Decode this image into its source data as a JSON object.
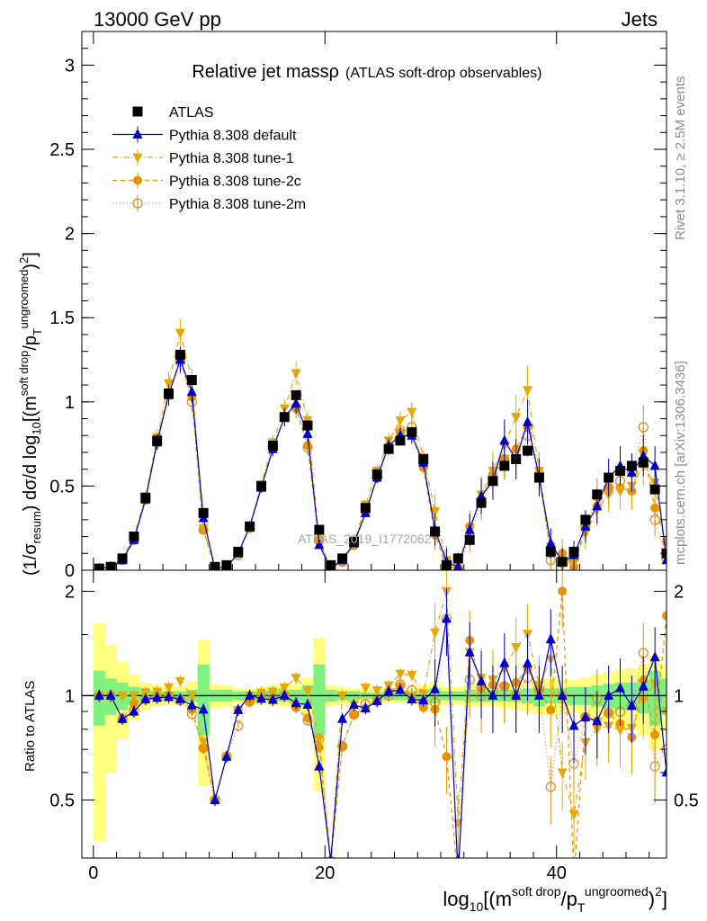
{
  "header": {
    "left": "13000 GeV pp",
    "right": "Jets"
  },
  "side_labels": {
    "rivet": "Rivet 3.1.10, ≥ 2.5M events",
    "mcplots": "mcplots.cern.ch [arXiv:1306.3436]"
  },
  "watermark": "ATLAS_2019_I1772062",
  "colors": {
    "atlas": "#000000",
    "default": "#0000cc",
    "tunes": "#e6a800",
    "tune2c": "#e69500",
    "tune2m": "#dd8a22",
    "band_inner": "#80f080",
    "band_outer": "#ffff80",
    "ref_line": "#000000"
  },
  "chart_data": {
    "type": "line",
    "title": "Relative jet massρ",
    "subtitle": "(ATLAS soft-drop observables)",
    "ylabel": "(1/σresum) dσ/d log10[(m^(soft drop)/pT^(ungroomed))²]",
    "ylabel_parts": {
      "a": "(1/σ",
      "b": "resum",
      "c": ") dσ/d log",
      "d": "10",
      "e": "[(m",
      "f": "soft drop",
      "g": "/p",
      "h": "T",
      "i": "ungroomed",
      "j": ")",
      "k": "2",
      "l": "]"
    },
    "xlabel_parts": {
      "a": "log",
      "b": "10",
      "c": "[(m",
      "d": "soft drop",
      "e": "/p",
      "f": "T",
      "g": "ungroomed",
      "h": ")",
      "i": "2",
      "j": "]"
    },
    "ratio_ylabel": "Ratio to ATLAS",
    "xlim": [
      -1,
      49.5
    ],
    "ylim": [
      0,
      3.2
    ],
    "ratio_ylim": [
      0.34,
      2.3
    ],
    "x_ticks": [
      "0",
      "20",
      "40"
    ],
    "y_ticks": [
      "0",
      "0.5",
      "1",
      "1.5",
      "2",
      "2.5",
      "3"
    ],
    "ratio_ticks": [
      "0.5",
      "1",
      "2"
    ],
    "legend_position": "top-left",
    "x": [
      0.5,
      1.5,
      2.5,
      3.5,
      4.5,
      5.5,
      6.5,
      7.5,
      8.5,
      9.5,
      10.5,
      11.5,
      12.5,
      13.5,
      14.5,
      15.5,
      16.5,
      17.5,
      18.5,
      19.5,
      20.5,
      21.5,
      22.5,
      23.5,
      24.5,
      25.5,
      26.5,
      27.5,
      28.5,
      29.5,
      30.5,
      31.5,
      32.5,
      33.5,
      34.5,
      35.5,
      36.5,
      37.5,
      38.5,
      39.5,
      40.5,
      41.5,
      42.5,
      43.5,
      44.5,
      45.5,
      46.5,
      47.5,
      48.5,
      49.5
    ],
    "band_inner": [
      1.18,
      1.12,
      1.09,
      1.06,
      1.04,
      1.03,
      1.03,
      1.03,
      1.04,
      1.23,
      1.04,
      1.04,
      1.03,
      1.03,
      1.03,
      1.04,
      1.04,
      1.04,
      1.07,
      1.23,
      1.04,
      1.03,
      1.03,
      1.02,
      1.02,
      1.03,
      1.03,
      1.03,
      1.04,
      1.05,
      1.03,
      1.03,
      1.04,
      1.04,
      1.04,
      1.04,
      1.04,
      1.05,
      1.07,
      1.05,
      1.05,
      1.06,
      1.06,
      1.07,
      1.08,
      1.09,
      1.09,
      1.11,
      1.18,
      1.12
    ],
    "band_outer": [
      1.62,
      1.4,
      1.25,
      1.15,
      1.09,
      1.07,
      1.06,
      1.06,
      1.1,
      1.45,
      1.08,
      1.07,
      1.05,
      1.05,
      1.06,
      1.07,
      1.07,
      1.08,
      1.13,
      1.47,
      1.07,
      1.06,
      1.05,
      1.05,
      1.04,
      1.05,
      1.05,
      1.05,
      1.07,
      1.1,
      1.06,
      1.06,
      1.07,
      1.07,
      1.07,
      1.08,
      1.09,
      1.1,
      1.12,
      1.12,
      1.11,
      1.11,
      1.13,
      1.15,
      1.17,
      1.19,
      1.2,
      1.23,
      1.3,
      1.22
    ],
    "series": [
      {
        "name": "ATLAS",
        "marker": "square",
        "color": "#000000",
        "dash": "none",
        "values": [
          0.01,
          0.02,
          0.07,
          0.2,
          0.43,
          0.77,
          1.05,
          1.28,
          1.13,
          0.34,
          0.02,
          0.03,
          0.11,
          0.26,
          0.5,
          0.74,
          0.91,
          1.04,
          0.86,
          0.24,
          0.03,
          0.07,
          0.17,
          0.37,
          0.57,
          0.72,
          0.77,
          0.82,
          0.66,
          0.23,
          0.03,
          0.07,
          0.18,
          0.4,
          0.53,
          0.62,
          0.66,
          0.71,
          0.55,
          0.11,
          0.05,
          0.11,
          0.3,
          0.45,
          0.55,
          0.59,
          0.62,
          0.64,
          0.48,
          0.1
        ]
      },
      {
        "name": "Pythia 8.308 default",
        "marker": "triangle-up",
        "color": "#0000cc",
        "dash": "none",
        "values": [
          0.01,
          0.02,
          0.06,
          0.18,
          0.42,
          0.76,
          1.04,
          1.25,
          1.06,
          0.31,
          0.01,
          0.02,
          0.1,
          0.26,
          0.49,
          0.72,
          0.91,
          0.99,
          0.81,
          0.15,
          0.01,
          0.06,
          0.16,
          0.34,
          0.55,
          0.74,
          0.8,
          0.8,
          0.64,
          0.24,
          0.05,
          0.02,
          0.24,
          0.44,
          0.53,
          0.77,
          0.66,
          0.88,
          0.55,
          0.16,
          0.05,
          0.09,
          0.26,
          0.38,
          0.55,
          0.62,
          0.58,
          0.68,
          0.62,
          0.06
        ]
      },
      {
        "name": "Pythia 8.308 tune-1",
        "marker": "triangle-down",
        "color": "#e6a800",
        "dash": "6,3,1,3",
        "values": [
          0.01,
          0.02,
          0.07,
          0.2,
          0.44,
          0.79,
          1.11,
          1.41,
          1.13,
          0.25,
          0.01,
          0.02,
          0.1,
          0.26,
          0.51,
          0.76,
          0.96,
          1.17,
          0.89,
          0.18,
          0.01,
          0.07,
          0.16,
          0.39,
          0.59,
          0.77,
          0.89,
          0.94,
          0.67,
          0.35,
          0.06,
          0.03,
          0.24,
          0.45,
          0.59,
          0.74,
          0.91,
          1.07,
          0.59,
          0.14,
          0.03,
          0.05,
          0.22,
          0.36,
          0.45,
          0.47,
          0.5,
          0.62,
          0.52,
          0.09
        ]
      },
      {
        "name": "Pythia 8.308 tune-2c",
        "marker": "circle-filled",
        "color": "#e69500",
        "dash": "5,4",
        "values": [
          0.01,
          0.02,
          0.06,
          0.19,
          0.42,
          0.77,
          1.05,
          1.25,
          1.03,
          0.24,
          0.01,
          0.02,
          0.1,
          0.25,
          0.49,
          0.72,
          0.91,
          0.96,
          0.74,
          0.17,
          0.01,
          0.05,
          0.15,
          0.34,
          0.55,
          0.74,
          0.82,
          0.81,
          0.61,
          0.21,
          0.02,
          0.02,
          0.26,
          0.42,
          0.57,
          0.66,
          0.72,
          0.85,
          0.57,
          0.1,
          0.1,
          0.02,
          0.26,
          0.38,
          0.49,
          0.49,
          0.47,
          0.71,
          0.37,
          0.17
        ]
      },
      {
        "name": "Pythia 8.308 tune-2m",
        "marker": "circle-open",
        "color": "#dd8a22",
        "dash": "1,3",
        "values": [
          0.01,
          0.02,
          0.06,
          0.18,
          0.42,
          0.76,
          1.05,
          1.24,
          1.0,
          0.24,
          0.01,
          0.02,
          0.09,
          0.25,
          0.5,
          0.73,
          0.91,
          0.97,
          0.73,
          0.18,
          0.01,
          0.05,
          0.15,
          0.35,
          0.55,
          0.72,
          0.83,
          0.85,
          0.63,
          0.22,
          0.05,
          0.01,
          0.2,
          0.4,
          0.55,
          0.66,
          0.66,
          0.8,
          0.57,
          0.06,
          0.05,
          0.07,
          0.26,
          0.44,
          0.49,
          0.53,
          0.58,
          0.85,
          0.3,
          0.07
        ]
      }
    ]
  }
}
